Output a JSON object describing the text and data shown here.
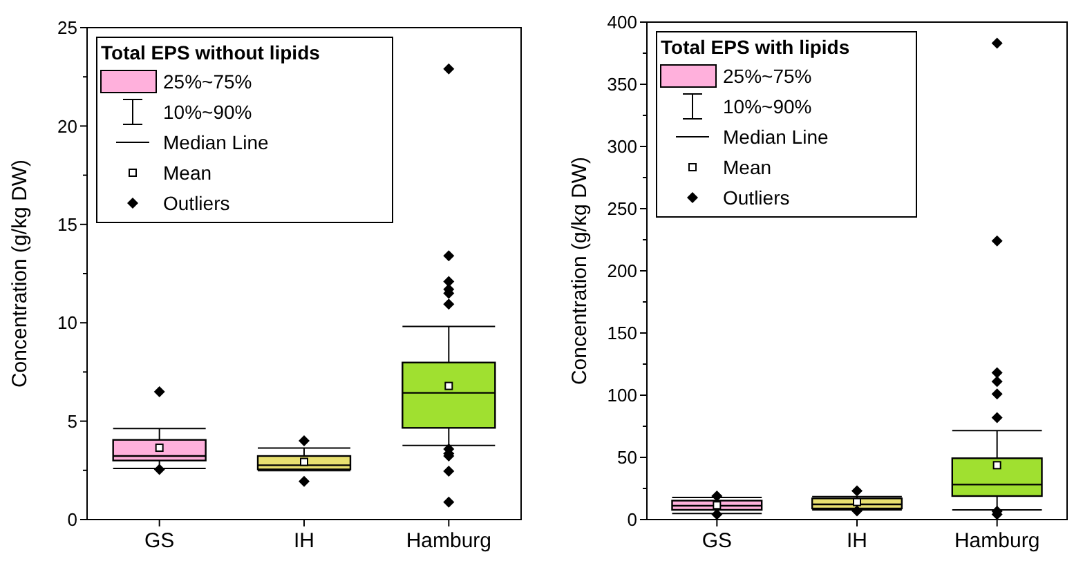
{
  "chart_data": [
    {
      "type": "box",
      "ylabel": "Concentration (g/kg DW)",
      "legend_title": "Total EPS without lipids",
      "annotations": [
        "25%~75%",
        "10%~90%",
        "Median Line",
        "Mean",
        "Outliers"
      ],
      "categories": [
        "GS",
        "IH",
        "Hamburg"
      ],
      "colors": [
        "#ffb0dc",
        "#e8e070",
        "#a0e030"
      ],
      "boxes": [
        {
          "low": 2.6,
          "q1": 3.0,
          "median": 3.23,
          "q3": 4.05,
          "high": 4.63,
          "mean": 3.65,
          "outliers": [
            6.5,
            2.55
          ]
        },
        {
          "low": 2.48,
          "q1": 2.55,
          "median": 2.76,
          "q3": 3.23,
          "high": 3.63,
          "mean": 2.93,
          "outliers": [
            4.0,
            1.94
          ]
        },
        {
          "low": 3.77,
          "q1": 4.66,
          "median": 6.44,
          "q3": 7.98,
          "high": 9.81,
          "mean": 6.79,
          "outliers": [
            22.9,
            13.4,
            12.1,
            11.7,
            11.5,
            10.95,
            3.58,
            3.35,
            3.23,
            2.46,
            0.89
          ]
        }
      ],
      "ylim": [
        0,
        25
      ],
      "yticks": [
        0,
        {
          "value": 2.5,
          "label": null
        },
        5,
        {
          "value": 7.5,
          "label": null
        },
        10,
        {
          "value": 12.5,
          "label": null
        },
        15,
        {
          "value": 17.5,
          "label": null
        },
        20,
        {
          "value": 22.5,
          "label": null
        },
        25
      ]
    },
    {
      "type": "box",
      "ylabel": "Concentration (g/kg DW)",
      "legend_title": "Total EPS with lipids",
      "annotations": [
        "25%~75%",
        "10%~90%",
        "Median Line",
        "Mean",
        "Outliers"
      ],
      "categories": [
        "GS",
        "IH",
        "Hamburg"
      ],
      "colors": [
        "#ffb0dc",
        "#e8e070",
        "#a0e030"
      ],
      "boxes": [
        {
          "low": 4.8,
          "q1": 7.8,
          "median": 11.1,
          "q3": 15.2,
          "high": 17.8,
          "mean": 11.5,
          "outliers": [
            18.9,
            4.1
          ]
        },
        {
          "low": 7.8,
          "q1": 8.9,
          "median": 12.2,
          "q3": 17.0,
          "high": 18.5,
          "mean": 14.1,
          "outliers": [
            23,
            7.0
          ]
        },
        {
          "low": 7.8,
          "q1": 18.9,
          "median": 28.1,
          "q3": 49.3,
          "high": 71.5,
          "mean": 43.7,
          "outliers": [
            383,
            224,
            118,
            111,
            101,
            82,
            6.7,
            4.1
          ]
        }
      ],
      "ylim": [
        0,
        400
      ],
      "yticks": [
        0,
        {
          "value": 25,
          "label": null
        },
        50,
        {
          "value": 75,
          "label": null
        },
        100,
        {
          "value": 125,
          "label": null
        },
        150,
        {
          "value": 175,
          "label": null
        },
        200,
        {
          "value": 225,
          "label": null
        },
        250,
        {
          "value": 275,
          "label": null
        },
        300,
        {
          "value": 325,
          "label": null
        },
        350,
        {
          "value": 375,
          "label": null
        },
        400
      ]
    }
  ]
}
